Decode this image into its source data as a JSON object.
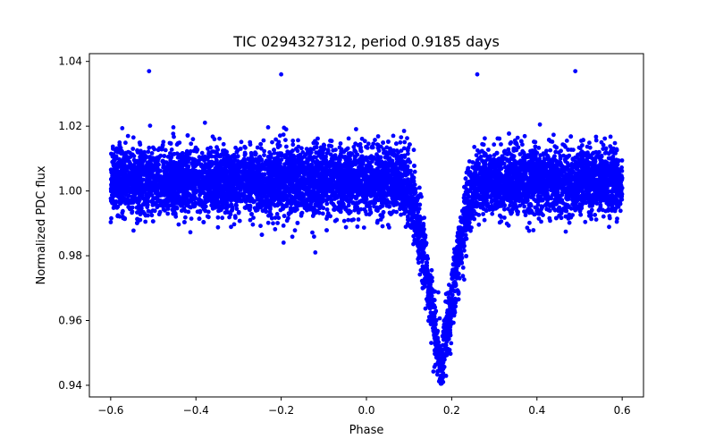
{
  "chart_data": {
    "type": "scatter",
    "title": "TIC 0294327312, period 0.9185 days",
    "xlabel": "Phase",
    "ylabel": "Normalized PDC flux",
    "xlim": [
      -0.65,
      0.65
    ],
    "ylim": [
      0.9364,
      1.0424
    ],
    "xticks": [
      -0.6,
      -0.4,
      -0.2,
      0.0,
      0.2,
      0.4,
      0.6
    ],
    "xtick_labels": [
      "−0.6",
      "−0.4",
      "−0.2",
      "0.0",
      "0.2",
      "0.4",
      "0.6"
    ],
    "yticks": [
      0.94,
      0.96,
      0.98,
      1.0,
      1.02,
      1.04
    ],
    "ytick_labels": [
      "0.94",
      "0.96",
      "0.98",
      "1.00",
      "1.02",
      "1.04"
    ],
    "grid": false,
    "marker_color": "#0000ff",
    "series": [
      {
        "name": "PDC flux",
        "x_range": [
          -0.6,
          0.6
        ],
        "baseline_flux": 1.003,
        "baseline_scatter": 0.012,
        "transit_center_phase": 0.175,
        "transit_min_flux": 0.943,
        "transit_half_width_phase": 0.09,
        "approx_point_count": 9000,
        "notable_points": [
          {
            "x": -0.51,
            "y": 1.037
          },
          {
            "x": -0.2,
            "y": 1.036
          },
          {
            "x": 0.26,
            "y": 1.036
          },
          {
            "x": 0.49,
            "y": 1.037
          },
          {
            "x": 0.18,
            "y": 0.941
          },
          {
            "x": -0.12,
            "y": 0.981
          }
        ]
      }
    ]
  }
}
